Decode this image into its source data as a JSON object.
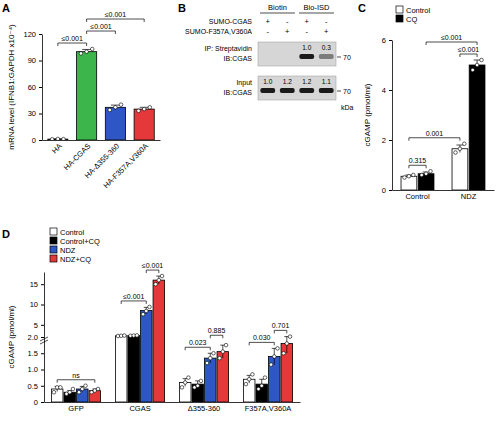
{
  "chart_data": [
    {
      "panel": "A",
      "type": "bar",
      "y_label": "mRNA level (IFNB1:GAPDH x10⁻⁴)",
      "categories": [
        "HA",
        "HA-CGAS",
        "HA-Δ355-360",
        "HA-F357A,V360A"
      ],
      "values": [
        1,
        100,
        37,
        35
      ],
      "errors": [
        0.3,
        2.5,
        2.5,
        2
      ],
      "points": [
        [
          0.8,
          1.2,
          1.0
        ],
        [
          98,
          100,
          103
        ],
        [
          34,
          37,
          40
        ],
        [
          33,
          35,
          37
        ]
      ],
      "colors": [
        "#ffffff",
        "#3cb54a",
        "#2e56c4",
        "#e5383b"
      ],
      "ylim": [
        0,
        120
      ],
      "yticks": [
        0,
        30,
        60,
        90,
        120
      ],
      "annotations": [
        {
          "text": "≤0.001",
          "between": [
            "HA",
            "HA-CGAS"
          ]
        },
        {
          "text": "≤0.001",
          "between": [
            "HA-CGAS",
            "HA-Δ355-360"
          ]
        },
        {
          "text": "≤0.001",
          "between": [
            "HA-CGAS",
            "HA-F357A,V360A"
          ]
        }
      ]
    },
    {
      "panel": "C",
      "type": "bar",
      "y_label": "cGAMP (pmol/ml)",
      "categories": [
        "Control",
        "NDZ"
      ],
      "series": [
        {
          "name": "Control",
          "color": "#ffffff",
          "values": [
            0.55,
            1.65
          ],
          "errors": [
            0.05,
            0.15
          ],
          "points": [
            [
              0.5,
              0.55,
              0.6
            ],
            [
              1.5,
              1.65,
              1.85
            ]
          ]
        },
        {
          "name": "CQ",
          "color": "#000000",
          "values": [
            0.65,
            5.0
          ],
          "errors": [
            0.07,
            0.2
          ],
          "points": [
            [
              0.6,
              0.65,
              0.75
            ],
            [
              4.8,
              5.0,
              5.2
            ]
          ]
        }
      ],
      "ylim": [
        0,
        6
      ],
      "yticks": [
        0,
        2,
        4,
        6
      ],
      "legend": "top-left",
      "annotations": [
        {
          "text": "0.315",
          "between": [
            [
              "Control",
              "Control"
            ],
            [
              "Control",
              "CQ"
            ]
          ]
        },
        {
          "text": "0.001",
          "between": [
            [
              "Control",
              "Control"
            ],
            [
              "NDZ",
              "Control"
            ]
          ]
        },
        {
          "text": "≤0.001",
          "between": [
            [
              "NDZ",
              "Control"
            ],
            [
              "NDZ",
              "CQ"
            ]
          ]
        },
        {
          "text": "≤0.001",
          "between": [
            [
              "Control",
              "CQ"
            ],
            [
              "NDZ",
              "CQ"
            ]
          ]
        }
      ]
    },
    {
      "panel": "D",
      "type": "bar",
      "y_label": "cGAMP (pmol/ml)",
      "categories": [
        "GFP",
        "CGAS",
        "Δ355-360",
        "F357A,V360A"
      ],
      "series": [
        {
          "name": "Control",
          "color": "#ffffff",
          "values": [
            0.4,
            2.3,
            0.6,
            0.7
          ],
          "errors": [
            0.08,
            0.05,
            0.12,
            0.12
          ],
          "points": [
            [
              0.3,
              0.45,
              0.45
            ],
            [
              2.25,
              2.3,
              2.35
            ],
            [
              0.45,
              0.6,
              0.75
            ],
            [
              0.55,
              0.7,
              0.85
            ]
          ]
        },
        {
          "name": "Control+CQ",
          "color": "#000000",
          "values": [
            0.3,
            2.35,
            0.55,
            0.55
          ],
          "errors": [
            0.05,
            0.05,
            0.1,
            0.15
          ],
          "points": [
            [
              0.25,
              0.3,
              0.4
            ],
            [
              2.3,
              2.35,
              2.4
            ],
            [
              0.45,
              0.5,
              0.65
            ],
            [
              0.4,
              0.5,
              0.75
            ]
          ]
        },
        {
          "name": "NDZ",
          "color": "#2e56c4",
          "values": [
            0.4,
            8.5,
            1.35,
            1.4
          ],
          "errors": [
            0.08,
            0.8,
            0.15,
            0.25
          ],
          "points": [
            [
              0.3,
              0.4,
              0.5
            ],
            [
              7.6,
              8.4,
              9.4
            ],
            [
              1.2,
              1.35,
              1.5
            ],
            [
              1.15,
              1.4,
              1.65
            ]
          ]
        },
        {
          "name": "NDZ+CQ",
          "color": "#e5383b",
          "values": [
            0.35,
            16.0,
            1.55,
            1.8
          ],
          "errors": [
            0.05,
            1.0,
            0.2,
            0.3
          ],
          "points": [
            [
              0.3,
              0.35,
              0.4
            ],
            [
              15.0,
              16.0,
              17.0
            ],
            [
              1.35,
              1.55,
              1.75
            ],
            [
              1.5,
              1.8,
              2.1
            ]
          ]
        }
      ],
      "ylim": [
        0,
        18
      ],
      "yticks": [
        0,
        0.5,
        {
          "value": 1,
          "label": "1.0"
        },
        1.5,
        {
          "value": 2,
          "label": "2.0"
        },
        5,
        10,
        15
      ],
      "legend": "top-left",
      "annotations": [
        {
          "text": "ns",
          "between": [
            [
              "GFP",
              "Control"
            ],
            [
              "GFP",
              "NDZ+CQ"
            ]
          ]
        },
        {
          "text": "≤0.001",
          "between": [
            [
              "CGAS",
              "Control"
            ],
            [
              "CGAS",
              "NDZ"
            ]
          ]
        },
        {
          "text": "≤0.001",
          "between": [
            [
              "CGAS",
              "NDZ"
            ],
            [
              "CGAS",
              "NDZ+CQ"
            ]
          ]
        },
        {
          "text": "0.023",
          "between": [
            [
              "Δ355-360",
              "Control"
            ],
            [
              "Δ355-360",
              "NDZ"
            ]
          ]
        },
        {
          "text": "0.885",
          "between": [
            [
              "Δ355-360",
              "NDZ"
            ],
            [
              "Δ355-360",
              "NDZ+CQ"
            ]
          ]
        },
        {
          "text": "0.030",
          "between": [
            [
              "F357A,V360A",
              "Control"
            ],
            [
              "F357A,V360A",
              "NDZ"
            ]
          ]
        },
        {
          "text": "0.701",
          "between": [
            [
              "F357A,V360A",
              "NDZ"
            ],
            [
              "F357A,V360A",
              "NDZ+CQ"
            ]
          ]
        }
      ]
    }
  ],
  "blot": {
    "panel": "B",
    "conditions": [
      "Biotin",
      "Bio-ISD"
    ],
    "treatments": [
      {
        "label": "SUMO-CGAS",
        "signs": [
          "+",
          "-",
          "+",
          "-"
        ]
      },
      {
        "label": "SUMO-F357A,V360A",
        "signs": [
          "-",
          "+",
          "-",
          "+"
        ]
      }
    ],
    "panels": [
      {
        "label": "IP: Streptavidin",
        "probe": "IB:CGAS",
        "quant": [
          null,
          null,
          "1.0",
          "0.3"
        ],
        "marker": "70"
      },
      {
        "label": "Input",
        "probe": "IB:CGAS",
        "quant": [
          "1.0",
          "1.2",
          "1.2",
          "1.1"
        ],
        "marker": "70"
      }
    ],
    "unit": "kDa"
  }
}
